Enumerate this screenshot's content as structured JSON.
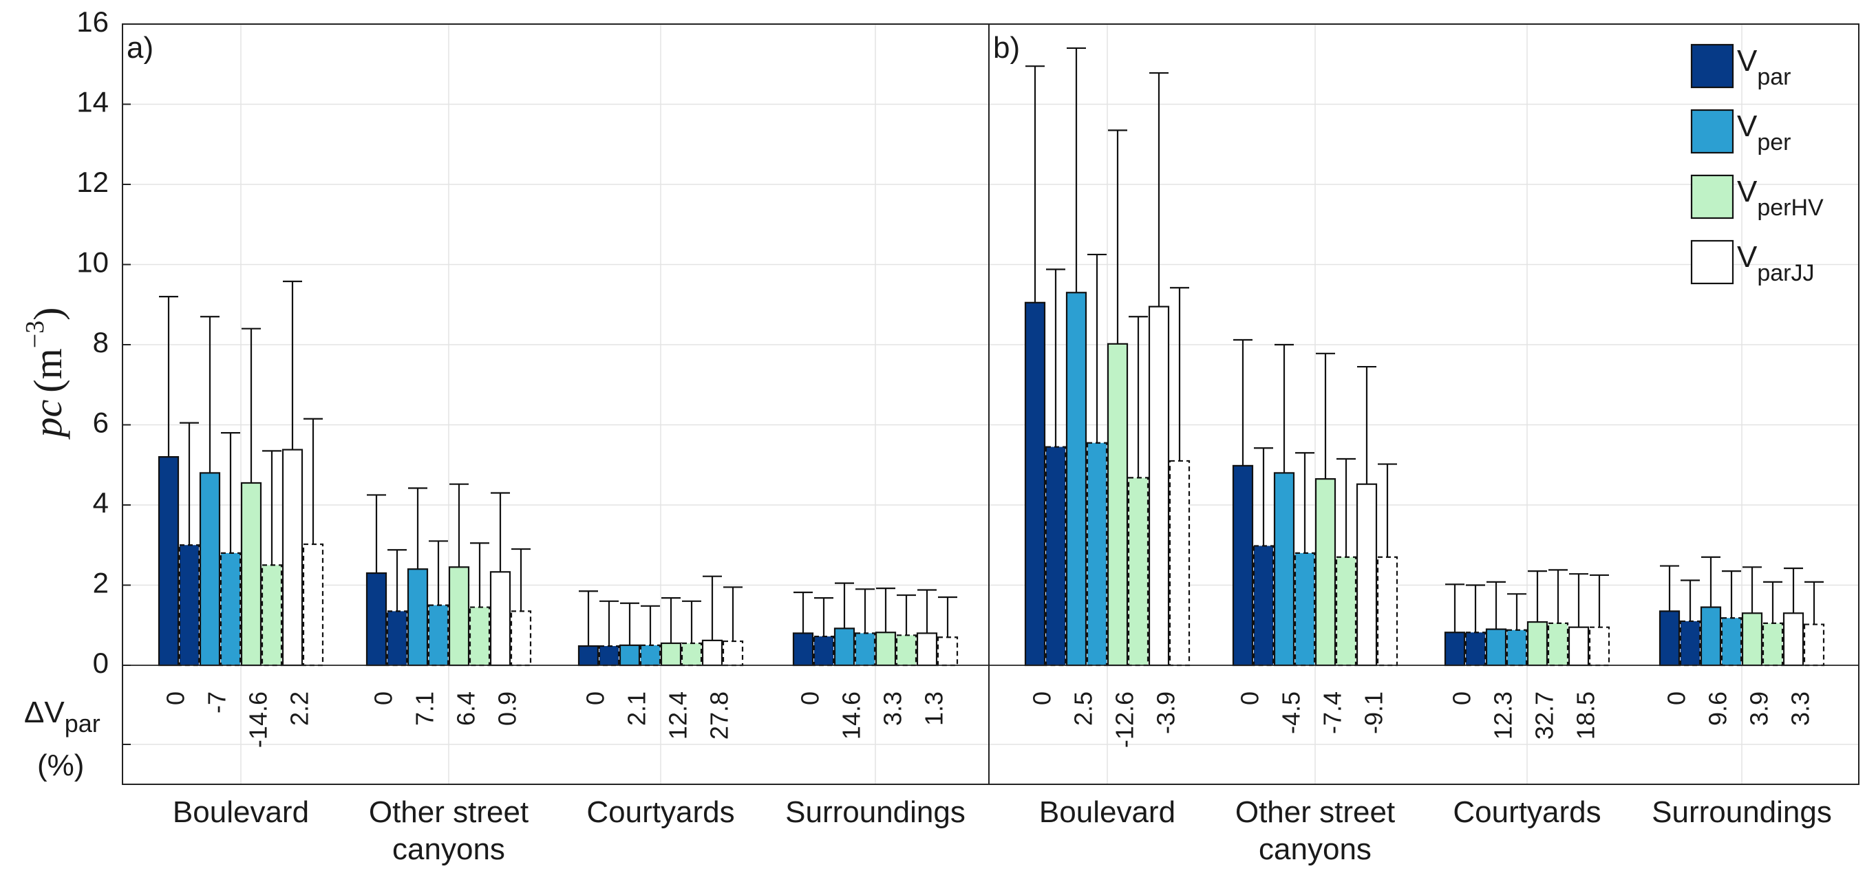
{
  "chart_data": {
    "type": "bar",
    "ylabel": {
      "main": "pc",
      "unit_open": "(m",
      "unit_exp": "−3",
      "unit_close": ")"
    },
    "ylim": [
      0,
      16
    ],
    "yticks": [
      0,
      2,
      4,
      6,
      8,
      10,
      12,
      14,
      16
    ],
    "delta_label": {
      "main": "ΔV",
      "sub": "par",
      "unit": "(%)"
    },
    "legend": [
      {
        "base": "V",
        "sub": "par",
        "color": "#063A87",
        "dashed": false
      },
      {
        "base": "V",
        "sub": "per",
        "color": "#2C9FD2",
        "dashed": false
      },
      {
        "base": "V",
        "sub": "perHV",
        "color": "#BFF2C6",
        "dashed": false
      },
      {
        "base": "V",
        "sub": "parJJ",
        "color": "#FFFFFF",
        "dashed": false
      }
    ],
    "bar_colors": [
      "#063A87",
      "#2C9FD2",
      "#BFF2C6",
      "#FFFFFF"
    ],
    "categories": [
      {
        "lines": [
          "Boulevard"
        ]
      },
      {
        "lines": [
          "Other street",
          "canyons"
        ]
      },
      {
        "lines": [
          "Courtyards"
        ]
      },
      {
        "lines": [
          "Surroundings"
        ]
      }
    ],
    "panels": [
      {
        "label": "a)",
        "groups": [
          {
            "values": [
              5.2,
              3.0,
              4.8,
              2.8,
              4.55,
              2.5,
              5.38,
              3.02
            ],
            "errors": [
              9.2,
              6.05,
              8.7,
              5.8,
              8.4,
              5.35,
              9.58,
              6.15
            ],
            "deltas": [
              "0",
              "-7",
              "-14.6",
              "2.2"
            ]
          },
          {
            "values": [
              2.3,
              1.35,
              2.4,
              1.5,
              2.45,
              1.45,
              2.33,
              1.35
            ],
            "errors": [
              4.25,
              2.88,
              4.42,
              3.1,
              4.52,
              3.05,
              4.3,
              2.9
            ],
            "deltas": [
              "0",
              "7.1",
              "6.4",
              "0.9"
            ]
          },
          {
            "values": [
              0.48,
              0.48,
              0.5,
              0.5,
              0.55,
              0.55,
              0.62,
              0.6
            ],
            "errors": [
              1.85,
              1.6,
              1.55,
              1.48,
              1.68,
              1.6,
              2.22,
              1.95
            ],
            "deltas": [
              "0",
              "2.1",
              "12.4",
              "27.8"
            ]
          },
          {
            "values": [
              0.8,
              0.72,
              0.92,
              0.8,
              0.82,
              0.75,
              0.8,
              0.7
            ],
            "errors": [
              1.82,
              1.68,
              2.05,
              1.9,
              1.92,
              1.75,
              1.88,
              1.7
            ],
            "deltas": [
              "0",
              "14.6",
              "3.3",
              "1.3"
            ]
          }
        ]
      },
      {
        "label": "b)",
        "groups": [
          {
            "values": [
              9.05,
              5.45,
              9.3,
              5.55,
              8.02,
              4.68,
              8.95,
              5.1
            ],
            "errors": [
              14.95,
              9.88,
              15.4,
              10.25,
              13.35,
              8.7,
              14.78,
              9.42
            ],
            "deltas": [
              "0",
              "2.5",
              "-12.6",
              "-3.9"
            ]
          },
          {
            "values": [
              4.98,
              2.98,
              4.8,
              2.8,
              4.65,
              2.7,
              4.52,
              2.7
            ],
            "errors": [
              8.12,
              5.42,
              8.0,
              5.3,
              7.78,
              5.15,
              7.45,
              5.02
            ],
            "deltas": [
              "0",
              "-4.5",
              "-7.4",
              "-9.1"
            ]
          },
          {
            "values": [
              0.82,
              0.82,
              0.9,
              0.88,
              1.08,
              1.05,
              0.95,
              0.95
            ],
            "errors": [
              2.02,
              2.0,
              2.08,
              1.78,
              2.35,
              2.38,
              2.28,
              2.25
            ],
            "deltas": [
              "0",
              "12.3",
              "32.7",
              "18.5"
            ]
          },
          {
            "values": [
              1.35,
              1.1,
              1.45,
              1.18,
              1.3,
              1.05,
              1.3,
              1.02
            ],
            "errors": [
              2.48,
              2.12,
              2.7,
              2.35,
              2.45,
              2.08,
              2.42,
              2.08
            ],
            "deltas": [
              "0",
              "9.6",
              "3.9",
              "3.3"
            ]
          }
        ]
      }
    ]
  }
}
